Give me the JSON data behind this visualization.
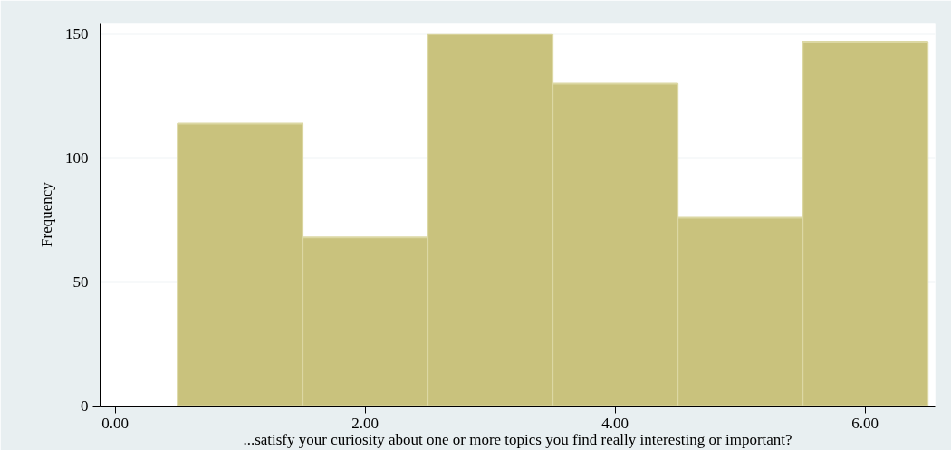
{
  "chart_data": {
    "type": "histogram",
    "xlabel": "...satisfy your curiosity about one or more topics you find really interesting or important?",
    "ylabel": "Frequency",
    "bins": [
      0.5,
      1.5,
      2.5,
      3.5,
      4.5,
      5.5,
      6.5
    ],
    "values": [
      114,
      68,
      150,
      130,
      76,
      147
    ],
    "color": "#c9c27d",
    "xlim": [
      -0.12,
      6.56
    ],
    "ylim": [
      0,
      154.5
    ],
    "xticks": [
      {
        "value": 0,
        "label": "0.00"
      },
      {
        "value": 2,
        "label": "2.00"
      },
      {
        "value": 4,
        "label": "4.00"
      },
      {
        "value": 6,
        "label": "6.00"
      }
    ],
    "yticks": [
      0,
      50,
      100,
      150
    ],
    "grid": "y"
  }
}
